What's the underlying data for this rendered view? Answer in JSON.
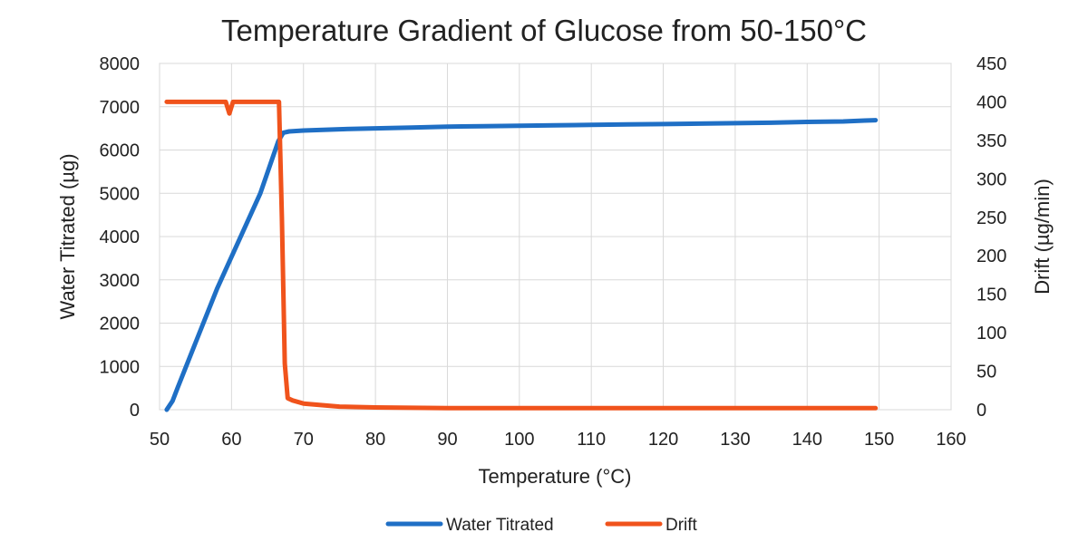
{
  "chart_data": {
    "type": "line",
    "title": "Temperature Gradient of Glucose from 50-150°C",
    "xlabel": "Temperature (°C)",
    "ylabel": "Water Titrated (µg)",
    "y2label": "Drift (µg/min)",
    "xlim": [
      50,
      160
    ],
    "ylim": [
      0,
      8000
    ],
    "y2lim": [
      0,
      450
    ],
    "xticks": [
      50,
      60,
      70,
      80,
      90,
      100,
      110,
      120,
      130,
      140,
      150,
      160
    ],
    "yticks": [
      0,
      1000,
      2000,
      3000,
      4000,
      5000,
      6000,
      7000,
      8000
    ],
    "y2ticks": [
      0,
      50,
      100,
      150,
      200,
      250,
      300,
      350,
      400,
      450
    ],
    "grid": true,
    "legend_position": "bottom",
    "series": [
      {
        "name": "Water Titrated",
        "axis": "left",
        "color": "#1F6FC5",
        "x": [
          51,
          51.8,
          52.5,
          55,
          58,
          61,
          64,
          66.5,
          67.2,
          68,
          70,
          75,
          80,
          85,
          90,
          95,
          100,
          105,
          110,
          115,
          120,
          125,
          130,
          135,
          140,
          145,
          148,
          149.5
        ],
        "y": [
          0,
          200,
          500,
          1550,
          2800,
          3900,
          5000,
          6200,
          6400,
          6430,
          6450,
          6480,
          6500,
          6520,
          6540,
          6550,
          6560,
          6570,
          6580,
          6590,
          6600,
          6610,
          6620,
          6630,
          6650,
          6660,
          6680,
          6690
        ]
      },
      {
        "name": "Drift",
        "axis": "right",
        "color": "#F0531C",
        "x": [
          51,
          59.2,
          59.7,
          60.2,
          61,
          66.6,
          67.0,
          67.4,
          67.8,
          68.5,
          70,
          75,
          80,
          90,
          100,
          110,
          120,
          130,
          140,
          149.5
        ],
        "y": [
          400,
          400,
          385,
          400,
          400,
          400,
          250,
          60,
          15,
          12,
          8,
          4,
          3,
          2,
          2,
          2,
          2,
          2,
          2,
          2
        ]
      }
    ]
  }
}
